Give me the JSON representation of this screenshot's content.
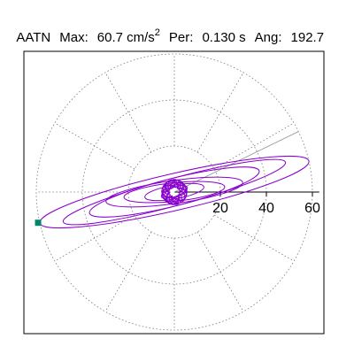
{
  "header": {
    "station": "AATN",
    "max_label": "Max:",
    "max_value": "60.7 cm/s",
    "max_exp": "2",
    "per_label": "Per:",
    "per_value": "0.130 s",
    "ang_label": "Ang:",
    "ang_value": "192.7"
  },
  "chart_data": {
    "type": "polar",
    "title": "",
    "rlim": [
      0,
      60
    ],
    "r_ticks": [
      20,
      40,
      60
    ],
    "r_tick_labels": [
      "20",
      "40",
      "60"
    ],
    "angular_grid_step_deg": 30,
    "grid": true,
    "series": [
      {
        "color": "#8800cc",
        "max_value": 60.7,
        "max_angle_deg": 192.7,
        "orbits": [
          {
            "semi_major": 60,
            "semi_minor": 8,
            "tilt_deg": 13
          },
          {
            "semi_major": 50,
            "semi_minor": 6,
            "tilt_deg": 15
          },
          {
            "semi_major": 38,
            "semi_minor": 6,
            "tilt_deg": 14
          },
          {
            "semi_major": 30,
            "semi_minor": 5,
            "tilt_deg": 8
          },
          {
            "semi_major": 22,
            "semi_minor": 4,
            "tilt_deg": 6
          },
          {
            "semi_major": 13,
            "semi_minor": 3,
            "tilt_deg": 10
          },
          {
            "semi_major": 6,
            "semi_minor": 2,
            "tilt_deg": 20
          }
        ]
      }
    ],
    "direction_line": {
      "angle_deg": 26,
      "r": 60
    },
    "marker": {
      "color": "#008866",
      "angle_deg": 192.7,
      "r": 60.7
    }
  }
}
